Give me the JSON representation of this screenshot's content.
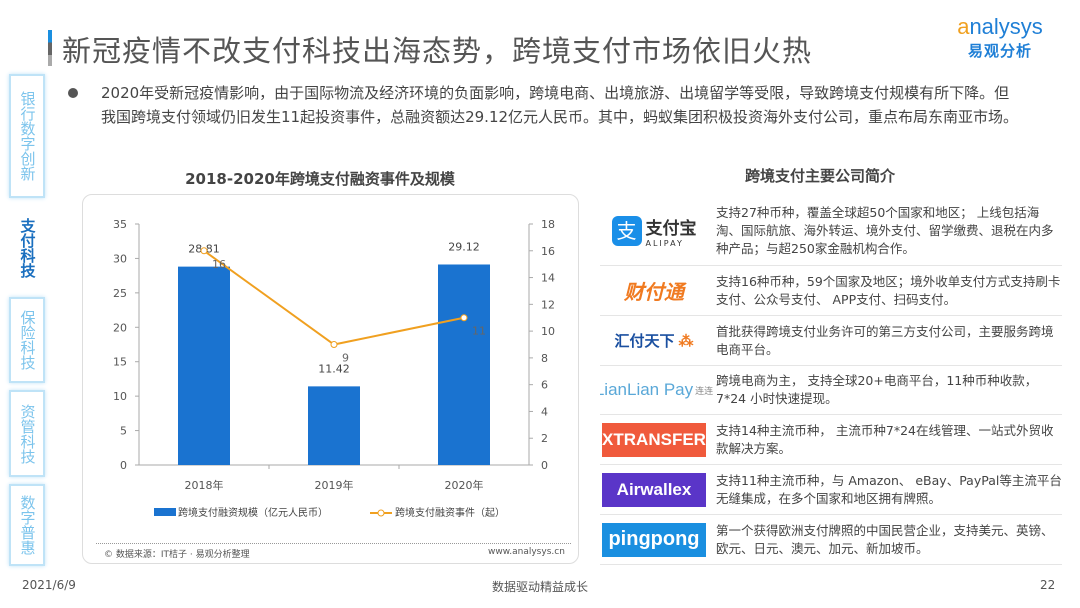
{
  "title": "新冠疫情不改支付科技出海态势，跨境支付市场依旧火热",
  "logo": {
    "en": "analysys",
    "cn": "易观分析"
  },
  "sidebar": {
    "items": [
      {
        "label": "银行数字创新",
        "active": false
      },
      {
        "label": "支付科技",
        "active": true
      },
      {
        "label": "保险科技",
        "active": false
      },
      {
        "label": "资管科技",
        "active": false
      },
      {
        "label": "数字普惠",
        "active": false
      }
    ]
  },
  "intro": "2020年受新冠疫情影响，由于国际物流及经济环境的负面影响，跨境电商、出境旅游、出境留学等受限，导致跨境支付规模有所下降。但我国跨境支付领域仍旧发生11起投资事件，总融资额达29.12亿元人民币。其中，蚂蚁集团积极投资海外支付公司，重点布局东南亚市场。",
  "chart_data": {
    "type": "bar+line",
    "title": "2018-2020年跨境支付融资事件及规模",
    "categories": [
      "2018年",
      "2019年",
      "2020年"
    ],
    "series": [
      {
        "name": "跨境支付融资规模（亿元人民币）",
        "type": "bar",
        "axis": "left",
        "values": [
          28.81,
          11.42,
          29.12
        ],
        "labels": [
          "28.81",
          "11.42",
          "29.12"
        ],
        "color": "#1a73d0"
      },
      {
        "name": "跨境支付融资事件（起）",
        "type": "line",
        "axis": "right",
        "values": [
          16,
          9,
          11
        ],
        "labels": [
          "16",
          "9",
          "11"
        ],
        "color": "#f0a020"
      }
    ],
    "left_axis": {
      "min": 0,
      "max": 35,
      "ticks": [
        "0",
        "5",
        "10",
        "15",
        "20",
        "25",
        "30",
        "35"
      ]
    },
    "right_axis": {
      "min": 0,
      "max": 18,
      "ticks": [
        "0",
        "2",
        "4",
        "6",
        "8",
        "10",
        "12",
        "14",
        "16",
        "18"
      ]
    },
    "legend": "bottom",
    "grid": false
  },
  "chart_source": "© 数据来源：IT桔子 · 易观分析整理",
  "chart_site": "www.analysys.cn",
  "companies": {
    "title": "跨境支付主要公司简介",
    "items": [
      {
        "logo": "支付宝",
        "logo_sub": "ALIPAY",
        "desc": "支持27种币种，覆盖全球超50个国家和地区； 上线包括海淘、国际航旅、海外转运、境外支付、留学缴费、退税在内多种产品；与超250家金融机构合作。"
      },
      {
        "logo": "财付通",
        "desc": "支持16种币种，59个国家及地区；境外收单支付方式支持刷卡支付、公众号支付、 APP支付、扫码支付。"
      },
      {
        "logo": "汇付天下",
        "desc": "首批获得跨境支付业务许可的第三方支付公司，主要服务跨境电商平台。"
      },
      {
        "logo": "LianLian Pay",
        "logo_sub": "连连",
        "desc": "跨境电商为主， 支持全球20+电商平台，11种币种收款，7*24 小时快速提现。"
      },
      {
        "logo": "XTRANSFER",
        "desc": "支持14种主流币种， 主流币种7*24在线管理、一站式外贸收款解决方案。"
      },
      {
        "logo": "Airwallex",
        "desc": "支持11种主流币种，与 Amazon、 eBay、PayPal等主流平台无缝集成，在多个国家和地区拥有牌照。"
      },
      {
        "logo": "pingpong",
        "desc": "第一个获得欧洲支付牌照的中国民营企业，支持美元、英镑、欧元、日元、澳元、加元、新加坡币。"
      }
    ]
  },
  "footer": {
    "date": "2021/6/9",
    "slogan": "数据驱动精益成长",
    "page": "22"
  }
}
